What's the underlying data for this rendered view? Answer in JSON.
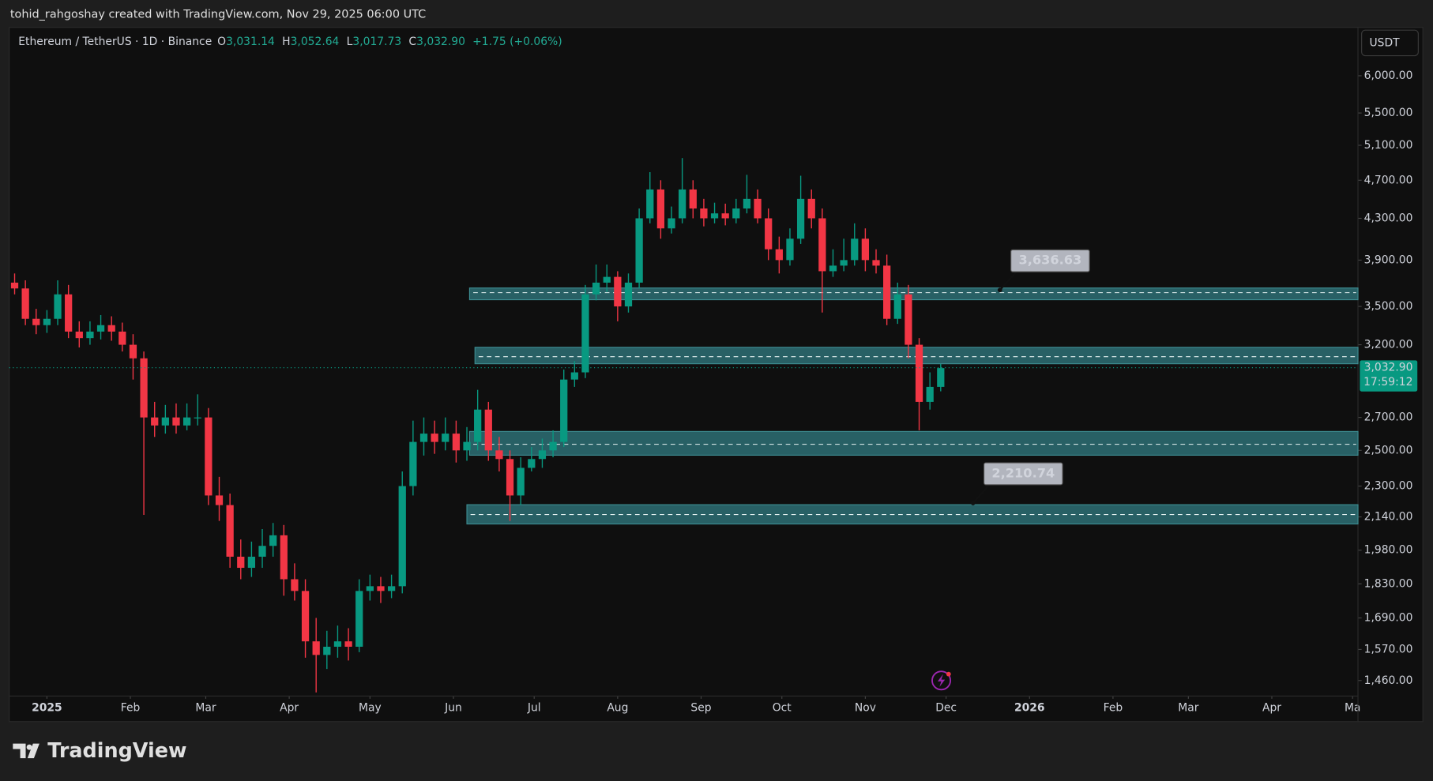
{
  "header": {
    "attribution": "tohid_rahgoshay created with TradingView.com, Nov 29, 2025 06:00 UTC",
    "symbol": "Ethereum / TetherUS · 1D · Binance",
    "ohlc": [
      {
        "key": "O",
        "value": "3,031.14"
      },
      {
        "key": "H",
        "value": "3,052.64"
      },
      {
        "key": "L",
        "value": "3,017.73"
      },
      {
        "key": "C",
        "value": "3,032.90"
      }
    ],
    "change": "+1.75 (+0.06%)",
    "currency": "USDT"
  },
  "footer": {
    "logo": "TradingView"
  },
  "chart_data": {
    "type": "candlestick",
    "log_scale": true,
    "up_color": "#089981",
    "down_color": "#f23645",
    "zone_color": "#2d6e74",
    "xlim": [
      -14,
      487
    ],
    "ylim": [
      1408,
      6718
    ],
    "xticks": [
      {
        "value": 0,
        "label": "2025"
      },
      {
        "value": 31,
        "label": "Feb"
      },
      {
        "value": 59,
        "label": "Mar"
      },
      {
        "value": 90,
        "label": "Apr"
      },
      {
        "value": 120,
        "label": "May"
      },
      {
        "value": 151,
        "label": "Jun"
      },
      {
        "value": 181,
        "label": "Jul"
      },
      {
        "value": 212,
        "label": "Aug"
      },
      {
        "value": 243,
        "label": "Sep"
      },
      {
        "value": 273,
        "label": "Oct"
      },
      {
        "value": 304,
        "label": "Nov"
      },
      {
        "value": 334,
        "label": "Dec"
      },
      {
        "value": 365,
        "label": "2026"
      },
      {
        "value": 396,
        "label": "Feb"
      },
      {
        "value": 424,
        "label": "Mar"
      },
      {
        "value": 455,
        "label": "Apr"
      },
      {
        "value": 485,
        "label": "Ma"
      }
    ],
    "yticks": [
      {
        "value": 6000,
        "label": "6,000.00"
      },
      {
        "value": 5500,
        "label": "5,500.00"
      },
      {
        "value": 5100,
        "label": "5,100.00"
      },
      {
        "value": 4700,
        "label": "4,700.00"
      },
      {
        "value": 4300,
        "label": "4,300.00"
      },
      {
        "value": 3900,
        "label": "3,900.00"
      },
      {
        "value": 3500,
        "label": "3,500.00"
      },
      {
        "value": 3200,
        "label": "3,200.00"
      },
      {
        "value": 2700,
        "label": "2,700.00"
      },
      {
        "value": 2500,
        "label": "2,500.00"
      },
      {
        "value": 2300,
        "label": "2,300.00"
      },
      {
        "value": 2140,
        "label": "2,140.00"
      },
      {
        "value": 1980,
        "label": "1,980.00"
      },
      {
        "value": 1830,
        "label": "1,830.00"
      },
      {
        "value": 1690,
        "label": "1,690.00"
      },
      {
        "value": 1570,
        "label": "1,570.00"
      },
      {
        "value": 1460,
        "label": "1,460.00"
      }
    ],
    "candles": {
      "x": [
        -12,
        -8,
        -4,
        0,
        4,
        8,
        12,
        16,
        20,
        24,
        28,
        32,
        36,
        40,
        44,
        48,
        52,
        56,
        60,
        64,
        68,
        72,
        76,
        80,
        84,
        88,
        92,
        96,
        100,
        104,
        108,
        112,
        116,
        120,
        124,
        128,
        132,
        136,
        140,
        144,
        148,
        152,
        156,
        160,
        164,
        168,
        172,
        176,
        180,
        184,
        188,
        192,
        196,
        200,
        204,
        208,
        212,
        216,
        220,
        224,
        228,
        232,
        236,
        240,
        244,
        248,
        252,
        256,
        260,
        264,
        268,
        272,
        276,
        280,
        284,
        288,
        292,
        296,
        300,
        304,
        308,
        312,
        316,
        320,
        324,
        328,
        332
      ],
      "open": [
        3700,
        3650,
        3400,
        3350,
        3400,
        3600,
        3300,
        3250,
        3300,
        3350,
        3300,
        3200,
        3100,
        2700,
        2650,
        2700,
        2650,
        2700,
        2700,
        2250,
        2200,
        1950,
        1900,
        1950,
        2000,
        2050,
        1850,
        1800,
        1600,
        1550,
        1580,
        1600,
        1580,
        1800,
        1820,
        1800,
        1820,
        2300,
        2550,
        2600,
        2550,
        2600,
        2500,
        2550,
        2750,
        2500,
        2450,
        2250,
        2400,
        2450,
        2500,
        2550,
        2950,
        3000,
        3600,
        3700,
        3750,
        3500,
        3700,
        4300,
        4600,
        4200,
        4300,
        4600,
        4400,
        4300,
        4350,
        4300,
        4400,
        4500,
        4300,
        4000,
        3900,
        4100,
        4500,
        4300,
        3800,
        3850,
        3900,
        4100,
        3900,
        3850,
        3400,
        3600,
        3200,
        2800,
        2900
      ],
      "high": [
        3780,
        3720,
        3480,
        3470,
        3720,
        3680,
        3380,
        3380,
        3430,
        3420,
        3370,
        3280,
        3150,
        2800,
        2780,
        2790,
        2790,
        2850,
        2760,
        2350,
        2260,
        2030,
        2020,
        2080,
        2110,
        2100,
        1920,
        1850,
        1690,
        1640,
        1660,
        1650,
        1850,
        1870,
        1860,
        1870,
        2380,
        2680,
        2700,
        2680,
        2700,
        2680,
        2640,
        2880,
        2800,
        2580,
        2500,
        2460,
        2520,
        2570,
        2620,
        3020,
        3080,
        3680,
        3860,
        3860,
        3800,
        3780,
        4400,
        4790,
        4700,
        4420,
        4950,
        4700,
        4500,
        4460,
        4450,
        4500,
        4760,
        4600,
        4400,
        4120,
        4200,
        4750,
        4600,
        4400,
        4000,
        4100,
        4250,
        4200,
        4000,
        3950,
        3700,
        3680,
        3250,
        3000,
        3060
      ],
      "low": [
        3600,
        3350,
        3280,
        3290,
        3350,
        3250,
        3180,
        3200,
        3240,
        3230,
        3150,
        2950,
        2150,
        2580,
        2600,
        2600,
        2620,
        2650,
        2200,
        2120,
        1900,
        1850,
        1860,
        1900,
        1950,
        1780,
        1760,
        1540,
        1420,
        1500,
        1540,
        1530,
        1560,
        1760,
        1750,
        1770,
        1790,
        2250,
        2470,
        2480,
        2500,
        2430,
        2440,
        2500,
        2440,
        2380,
        2120,
        2200,
        2380,
        2400,
        2460,
        2520,
        2900,
        2960,
        3550,
        3620,
        3380,
        3450,
        3650,
        4250,
        4100,
        4150,
        4250,
        4300,
        4220,
        4250,
        4230,
        4250,
        4350,
        4250,
        3900,
        3780,
        3850,
        4050,
        4200,
        3450,
        3750,
        3800,
        3850,
        3800,
        3780,
        3350,
        3360,
        3100,
        2620,
        2750,
        2870
      ],
      "close": [
        3650,
        3400,
        3350,
        3400,
        3600,
        3300,
        3250,
        3300,
        3350,
        3300,
        3200,
        3100,
        2700,
        2650,
        2700,
        2650,
        2700,
        2700,
        2250,
        2200,
        1950,
        1900,
        1950,
        2000,
        2050,
        1850,
        1800,
        1600,
        1550,
        1580,
        1600,
        1580,
        1800,
        1820,
        1800,
        1820,
        2300,
        2550,
        2600,
        2550,
        2600,
        2500,
        2550,
        2750,
        2500,
        2450,
        2250,
        2400,
        2450,
        2500,
        2550,
        2950,
        3000,
        3600,
        3700,
        3750,
        3500,
        3700,
        4300,
        4600,
        4200,
        4300,
        4600,
        4400,
        4300,
        4350,
        4300,
        4400,
        4500,
        4300,
        4000,
        3900,
        4100,
        4500,
        4300,
        3800,
        3850,
        3900,
        4100,
        3900,
        3850,
        3400,
        3600,
        3200,
        2800,
        2900,
        3030
      ]
    },
    "zones": [
      {
        "start": 157,
        "top": 3654,
        "bottom": 3555,
        "mid": 3614
      },
      {
        "start": 159,
        "top": 3181,
        "bottom": 3061,
        "mid": 3112
      },
      {
        "start": 157,
        "top": 2613,
        "bottom": 2472,
        "mid": 2536
      },
      {
        "start": 156,
        "top": 2202,
        "bottom": 2105,
        "mid": 2152
      }
    ],
    "callouts": [
      {
        "value": 3636.63,
        "label": "3,636.63",
        "x": 354
      },
      {
        "value": 2210.74,
        "label": "2,210.74",
        "x": 344
      }
    ],
    "last_price": {
      "value": 3032.9,
      "label": "3,032.90"
    },
    "countdown": "17:59:12"
  }
}
